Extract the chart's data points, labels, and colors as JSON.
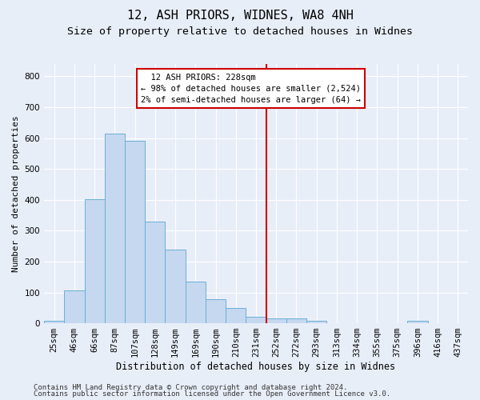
{
  "title": "12, ASH PRIORS, WIDNES, WA8 4NH",
  "subtitle": "Size of property relative to detached houses in Widnes",
  "xlabel": "Distribution of detached houses by size in Widnes",
  "ylabel": "Number of detached properties",
  "bar_categories": [
    "25sqm",
    "46sqm",
    "66sqm",
    "87sqm",
    "107sqm",
    "128sqm",
    "149sqm",
    "169sqm",
    "190sqm",
    "210sqm",
    "231sqm",
    "252sqm",
    "272sqm",
    "293sqm",
    "313sqm",
    "334sqm",
    "355sqm",
    "375sqm",
    "396sqm",
    "416sqm",
    "437sqm"
  ],
  "bar_values": [
    8,
    107,
    403,
    615,
    592,
    330,
    238,
    135,
    78,
    50,
    20,
    15,
    15,
    8,
    0,
    0,
    0,
    0,
    8,
    0,
    0
  ],
  "bar_color": "#c5d8f0",
  "bar_edge_color": "#6baed6",
  "vline_x": 10.5,
  "vline_color": "#cc0000",
  "ylim": [
    0,
    840
  ],
  "yticks": [
    0,
    100,
    200,
    300,
    400,
    500,
    600,
    700,
    800
  ],
  "annotation_title": "12 ASH PRIORS: 228sqm",
  "annotation_line1": "← 98% of detached houses are smaller (2,524)",
  "annotation_line2": "2% of semi-detached houses are larger (64) →",
  "annotation_box_color": "#ffffff",
  "annotation_box_edge": "#cc0000",
  "footer1": "Contains HM Land Registry data © Crown copyright and database right 2024.",
  "footer2": "Contains public sector information licensed under the Open Government Licence v3.0.",
  "bg_color": "#e8eef8",
  "plot_bg_color": "#e8eef8",
  "grid_color": "#ffffff",
  "title_fontsize": 11,
  "subtitle_fontsize": 9.5,
  "xlabel_fontsize": 8.5,
  "ylabel_fontsize": 8,
  "tick_fontsize": 7.5,
  "footer_fontsize": 6.5,
  "annot_fontsize": 7.5
}
